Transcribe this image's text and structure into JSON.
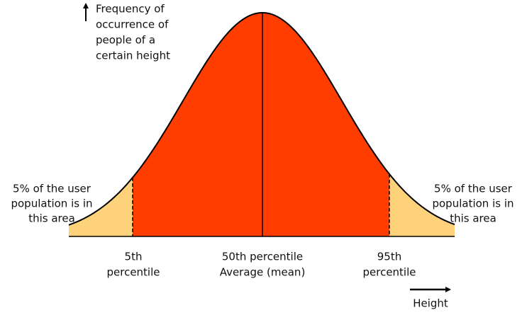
{
  "y_axis_label": [
    "Frequency of",
    "occurrence of",
    "people of a",
    "certain height"
  ],
  "left_note": [
    "5% of the user",
    "population is in",
    "this area"
  ],
  "right_note": [
    "5% of the user",
    "population is in",
    "this area"
  ],
  "markers": [
    {
      "lines": [
        "5th",
        "percentile"
      ]
    },
    {
      "lines": [
        "50th percentile",
        "Average (mean)"
      ]
    },
    {
      "lines": [
        "95th",
        "percentile"
      ]
    }
  ],
  "x_axis_label": "Height"
}
